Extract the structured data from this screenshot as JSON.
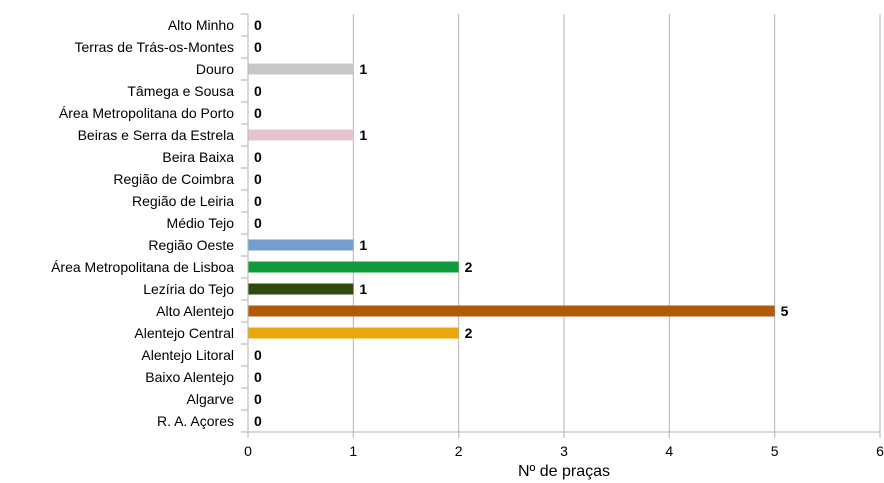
{
  "chart_data": {
    "type": "bar",
    "orientation": "horizontal",
    "categories": [
      "Alto Minho",
      "Terras de Trás-os-Montes",
      "Douro",
      "Tâmega e Sousa",
      "Área Metropolitana do Porto",
      "Beiras e Serra da Estrela",
      "Beira Baixa",
      "Região de Coimbra",
      "Região de Leiria",
      "Médio Tejo",
      "Região Oeste",
      "Área Metropolitana de Lisboa",
      "Lezíria do Tejo",
      "Alto Alentejo",
      "Alentejo Central",
      "Alentejo Litoral",
      "Baixo Alentejo",
      "Algarve",
      "R. A. Açores"
    ],
    "values": [
      0,
      0,
      1,
      0,
      0,
      1,
      0,
      0,
      0,
      0,
      1,
      2,
      1,
      5,
      2,
      0,
      0,
      0,
      0
    ],
    "bar_colors": [
      "#c8c8c8",
      "#c8c8c8",
      "#c8c8c8",
      "#c8c8c8",
      "#c8c8c8",
      "#e3c4cf",
      "#c8c8c8",
      "#c8c8c8",
      "#c8c8c8",
      "#c8c8c8",
      "#729fcf",
      "#0f9b3a",
      "#2f4a0c",
      "#b05a0a",
      "#e8a70a",
      "#c8c8c8",
      "#c8c8c8",
      "#c8c8c8",
      "#c8c8c8"
    ],
    "xlabel": "Nº de praças",
    "xlim": [
      0,
      6
    ],
    "xticks": [
      "0",
      "1",
      "2",
      "3",
      "4",
      "5",
      "6"
    ],
    "grid": "vertical",
    "legend": "none"
  }
}
